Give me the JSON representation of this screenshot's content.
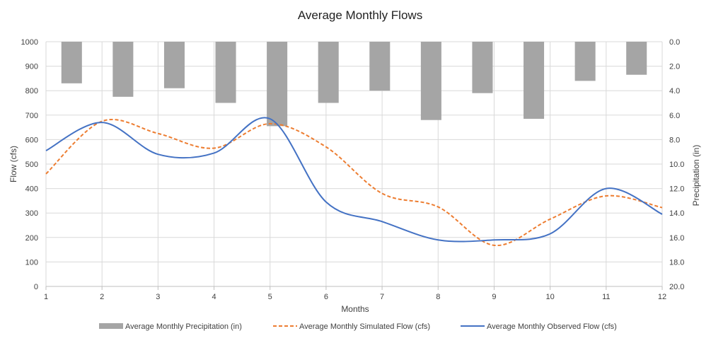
{
  "chart_data": {
    "type": "line",
    "title": "Average Monthly Flows",
    "xlabel": "Months",
    "ylabel": "Flow (cfs)",
    "y2label": "Precipitation (in)",
    "x": [
      1,
      2,
      3,
      4,
      5,
      6,
      7,
      8,
      9,
      10,
      11,
      12
    ],
    "xlim": [
      1,
      12
    ],
    "ylim": [
      0,
      1000
    ],
    "y2lim": [
      0,
      20
    ],
    "y2_reversed": true,
    "x_ticks": [
      "1",
      "2",
      "3",
      "4",
      "5",
      "6",
      "7",
      "8",
      "9",
      "10",
      "11",
      "12"
    ],
    "y_ticks": [
      "0",
      "100",
      "200",
      "300",
      "400",
      "500",
      "600",
      "700",
      "800",
      "900",
      "1000"
    ],
    "y2_ticks": [
      "0.0",
      "2.0",
      "4.0",
      "6.0",
      "8.0",
      "10.0",
      "12.0",
      "14.0",
      "16.0",
      "18.0",
      "20.0"
    ],
    "grid": true,
    "legend_position": "bottom",
    "bar_categories": [
      "1",
      "2",
      "3",
      "4",
      "5",
      "6",
      "7",
      "8",
      "9",
      "10",
      "11",
      "12"
    ],
    "series": [
      {
        "name": "Average Monthly Precipitation (in)",
        "type": "bar",
        "axis": "right",
        "color": "#a5a5a5",
        "values": [
          3.4,
          4.5,
          3.8,
          5.0,
          6.9,
          5.0,
          4.0,
          6.4,
          4.2,
          6.3,
          3.2,
          2.7
        ]
      },
      {
        "name": "Average Monthly Simulated Flow (cfs)",
        "type": "line",
        "style": "dashed",
        "axis": "left",
        "color": "#ed7d31",
        "values": [
          460,
          675,
          625,
          565,
          665,
          570,
          380,
          325,
          168,
          275,
          370,
          322
        ]
      },
      {
        "name": "Average Monthly Observed Flow (cfs)",
        "type": "line",
        "style": "solid",
        "axis": "left",
        "color": "#4472c4",
        "values": [
          555,
          670,
          540,
          545,
          685,
          345,
          265,
          190,
          190,
          215,
          400,
          295
        ]
      }
    ]
  }
}
